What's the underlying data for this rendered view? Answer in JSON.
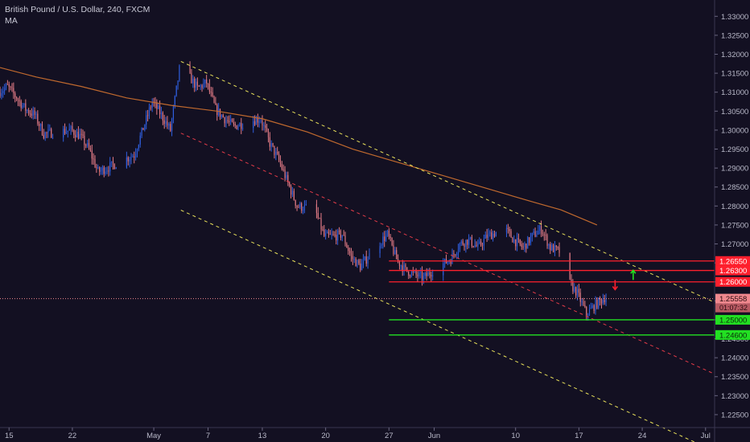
{
  "legend": {
    "symbol": "British Pound / U.S. Dollar, 240, FXCM",
    "indicator": "MA"
  },
  "colors": {
    "background": "#131022",
    "bull": "#2f5fe0",
    "bear": "#e07a85",
    "ma": "#c0692e",
    "channel_outer": "#e8e05a",
    "channel_mid": "#e23b48",
    "resistance": "#ff1f2d",
    "support": "#22e022",
    "axis_text": "#b9b9c9",
    "price_label": "#f0888e"
  },
  "chart_data": {
    "type": "candlestick",
    "title": "British Pound / U.S. Dollar, 240, FXCM",
    "indicator": "MA",
    "ylim": [
      1.2216,
      1.3343
    ],
    "xlim": [
      "2019-04-14",
      "2019-07-02"
    ],
    "y_ticks": [
      "1.33000",
      "1.32500",
      "1.32000",
      "1.31500",
      "1.31000",
      "1.30500",
      "1.30000",
      "1.29500",
      "1.29000",
      "1.28500",
      "1.28000",
      "1.27500",
      "1.27000",
      "1.26500",
      "1.26000",
      "1.25500",
      "1.25000",
      "1.24500",
      "1.24000",
      "1.23500",
      "1.23000",
      "1.22500"
    ],
    "x_ticks": [
      {
        "label": "15",
        "date": "2019-04-15"
      },
      {
        "label": "22",
        "date": "2019-04-22"
      },
      {
        "label": "May",
        "date": "2019-05-01"
      },
      {
        "label": "7",
        "date": "2019-05-07"
      },
      {
        "label": "13",
        "date": "2019-05-13"
      },
      {
        "label": "20",
        "date": "2019-05-20"
      },
      {
        "label": "27",
        "date": "2019-05-27"
      },
      {
        "label": "Jun",
        "date": "2019-06-01"
      },
      {
        "label": "10",
        "date": "2019-06-10"
      },
      {
        "label": "17",
        "date": "2019-06-17"
      },
      {
        "label": "24",
        "date": "2019-06-24"
      },
      {
        "label": "Jul",
        "date": "2019-07-01"
      }
    ],
    "price_path": [
      [
        "2019-04-14",
        1.31
      ],
      [
        "2019-04-15",
        1.3115
      ],
      [
        "2019-04-17",
        1.3055
      ],
      [
        "2019-04-18",
        1.304
      ],
      [
        "2019-04-19",
        1.299
      ],
      [
        "2019-04-22",
        1.3
      ],
      [
        "2019-04-23",
        1.2985
      ],
      [
        "2019-04-24",
        1.295
      ],
      [
        "2019-04-25",
        1.289
      ],
      [
        "2019-04-26",
        1.29
      ],
      [
        "2019-04-29",
        1.2935
      ],
      [
        "2019-04-30",
        1.3005
      ],
      [
        "2019-05-01",
        1.3075
      ],
      [
        "2019-05-02",
        1.304
      ],
      [
        "2019-05-03",
        1.3
      ],
      [
        "2019-05-04",
        1.316
      ],
      [
        "2019-05-05",
        1.3145
      ],
      [
        "2019-05-06",
        1.311
      ],
      [
        "2019-05-07",
        1.3125
      ],
      [
        "2019-05-08",
        1.3055
      ],
      [
        "2019-05-09",
        1.303
      ],
      [
        "2019-05-10",
        1.301
      ],
      [
        "2019-05-12",
        1.3025
      ],
      [
        "2019-05-13",
        1.303
      ],
      [
        "2019-05-14",
        1.2965
      ],
      [
        "2019-05-15",
        1.292
      ],
      [
        "2019-05-16",
        1.286
      ],
      [
        "2019-05-17",
        1.28
      ],
      [
        "2019-05-19",
        1.279
      ],
      [
        "2019-05-20",
        1.272
      ],
      [
        "2019-05-21",
        1.272
      ],
      [
        "2019-05-22",
        1.2725
      ],
      [
        "2019-05-23",
        1.2665
      ],
      [
        "2019-05-24",
        1.264
      ],
      [
        "2019-05-25",
        1.267
      ],
      [
        "2019-05-26",
        1.27
      ],
      [
        "2019-05-27",
        1.2725
      ],
      [
        "2019-05-28",
        1.266
      ],
      [
        "2019-05-29",
        1.263
      ],
      [
        "2019-05-30",
        1.262
      ],
      [
        "2019-05-31",
        1.261
      ],
      [
        "2019-06-01",
        1.263
      ],
      [
        "2019-06-03",
        1.266
      ],
      [
        "2019-06-04",
        1.27
      ],
      [
        "2019-06-05",
        1.271
      ],
      [
        "2019-06-06",
        1.269
      ],
      [
        "2019-06-07",
        1.272
      ],
      [
        "2019-06-09",
        1.274
      ],
      [
        "2019-06-10",
        1.271
      ],
      [
        "2019-06-11",
        1.269
      ],
      [
        "2019-06-12",
        1.272
      ],
      [
        "2019-06-13",
        1.274
      ],
      [
        "2019-06-14",
        1.269
      ],
      [
        "2019-06-15",
        1.268
      ],
      [
        "2019-06-16",
        1.26
      ],
      [
        "2019-06-17",
        1.257
      ],
      [
        "2019-06-18",
        1.2515
      ],
      [
        "2019-06-19",
        1.254
      ],
      [
        "2019-06-20",
        1.2558
      ]
    ],
    "moving_average": [
      [
        "2019-04-14",
        1.3165
      ],
      [
        "2019-04-18",
        1.314
      ],
      [
        "2019-04-23",
        1.3115
      ],
      [
        "2019-04-28",
        1.3085
      ],
      [
        "2019-05-03",
        1.3065
      ],
      [
        "2019-05-08",
        1.305
      ],
      [
        "2019-05-13",
        1.303
      ],
      [
        "2019-05-18",
        1.2995
      ],
      [
        "2019-05-23",
        1.295
      ],
      [
        "2019-05-28",
        1.2915
      ],
      [
        "2019-06-02",
        1.288
      ],
      [
        "2019-06-07",
        1.2845
      ],
      [
        "2019-06-12",
        1.281
      ],
      [
        "2019-06-15",
        1.279
      ],
      [
        "2019-06-19",
        1.275
      ]
    ],
    "channel_upper": [
      [
        "2019-05-04",
        1.3181
      ],
      [
        "2019-07-02",
        1.2546
      ]
    ],
    "channel_mid": [
      [
        "2019-05-04",
        1.2992
      ],
      [
        "2019-07-02",
        1.2357
      ]
    ],
    "channel_lower": [
      [
        "2019-05-04",
        1.2789
      ],
      [
        "2019-07-02",
        1.2154
      ]
    ],
    "levels": [
      {
        "label": "1.26550",
        "value": 1.2655,
        "kind": "resistance",
        "from": "2019-05-27"
      },
      {
        "label": "1.26300",
        "value": 1.263,
        "kind": "resistance",
        "from": "2019-05-27"
      },
      {
        "label": "1.26000",
        "value": 1.26,
        "kind": "resistance",
        "from": "2019-05-27"
      },
      {
        "label": "1.25000",
        "value": 1.25,
        "kind": "support",
        "from": "2019-05-27"
      },
      {
        "label": "1.24600",
        "value": 1.246,
        "kind": "support",
        "from": "2019-05-27"
      }
    ],
    "current_price": {
      "label": "1.25558",
      "value": 1.25558,
      "countdown": "01:07:32"
    },
    "arrows": [
      {
        "direction": "down",
        "date": "2019-06-21",
        "value": 1.259,
        "color": "#ff1f2d"
      },
      {
        "direction": "up",
        "date": "2019-06-23",
        "value": 1.262,
        "color": "#22e022"
      }
    ]
  }
}
